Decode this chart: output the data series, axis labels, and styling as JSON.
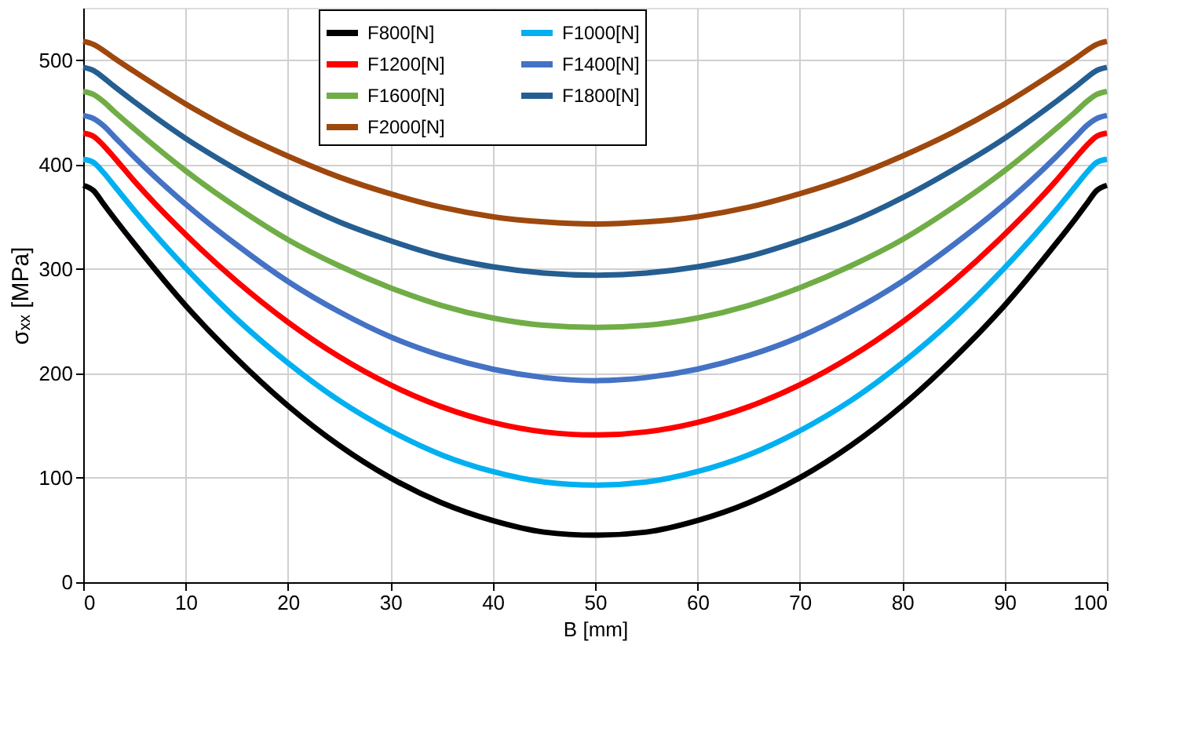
{
  "chart_data": {
    "type": "line",
    "xlabel": "B  [mm]",
    "ylabel": "σₓₓ [MPa]",
    "x": [
      0,
      1,
      2,
      3,
      5,
      10,
      15,
      20,
      25,
      30,
      35,
      40,
      45,
      50,
      55,
      60,
      65,
      70,
      75,
      80,
      85,
      90,
      95,
      97,
      98,
      99,
      100
    ],
    "xlim": [
      0,
      100
    ],
    "xticks": [
      0,
      10,
      20,
      30,
      40,
      50,
      60,
      70,
      80,
      90,
      100
    ],
    "ylim": [
      0,
      550
    ],
    "yticks": [
      0,
      100,
      200,
      300,
      400,
      500
    ],
    "grid": true,
    "legend": "top",
    "marker": "none",
    "line_style": "solid",
    "series": [
      {
        "name": "F800[N]",
        "color": "#000000",
        "values": [
          380,
          375,
          362,
          349,
          324,
          265,
          214,
          169,
          131,
          100,
          76,
          59,
          48,
          45,
          48,
          59,
          76,
          100,
          131,
          169,
          214,
          265,
          324,
          349,
          362,
          375,
          380
        ]
      },
      {
        "name": "F1000[N]",
        "color": "#00b0f0",
        "values": [
          405,
          402,
          392,
          380,
          356,
          301,
          252,
          210,
          174,
          145,
          122,
          106,
          96,
          93,
          96,
          106,
          122,
          145,
          174,
          210,
          252,
          301,
          356,
          380,
          392,
          402,
          405
        ]
      },
      {
        "name": "F1200[N]",
        "color": "#ff0000",
        "values": [
          430,
          427,
          418,
          407,
          384,
          333,
          288,
          249,
          216,
          189,
          168,
          153,
          144,
          141,
          144,
          153,
          168,
          189,
          216,
          249,
          288,
          333,
          384,
          407,
          418,
          427,
          430
        ]
      },
      {
        "name": "F1400[N]",
        "color": "#4472c4",
        "values": [
          447,
          444,
          437,
          427,
          407,
          362,
          323,
          288,
          259,
          235,
          217,
          204,
          196,
          193,
          196,
          204,
          217,
          235,
          259,
          288,
          323,
          362,
          407,
          427,
          437,
          444,
          447
        ]
      },
      {
        "name": "F1600[N]",
        "color": "#70ad47",
        "values": [
          470,
          467,
          460,
          451,
          434,
          394,
          359,
          328,
          303,
          282,
          265,
          253,
          246,
          244,
          246,
          253,
          265,
          282,
          303,
          328,
          359,
          394,
          434,
          451,
          460,
          467,
          470
        ]
      },
      {
        "name": "F1800[N]",
        "color": "#255e91",
        "values": [
          493,
          490,
          483,
          475,
          460,
          425,
          395,
          368,
          345,
          327,
          312,
          302,
          296,
          294,
          296,
          302,
          312,
          327,
          345,
          368,
          395,
          425,
          460,
          475,
          483,
          490,
          493
        ]
      },
      {
        "name": "F2000[N]",
        "color": "#9e480e",
        "values": [
          518,
          515,
          509,
          502,
          489,
          458,
          431,
          408,
          388,
          372,
          359,
          350,
          345,
          343,
          345,
          350,
          359,
          372,
          388,
          408,
          431,
          458,
          489,
          502,
          509,
          515,
          518
        ]
      }
    ]
  }
}
